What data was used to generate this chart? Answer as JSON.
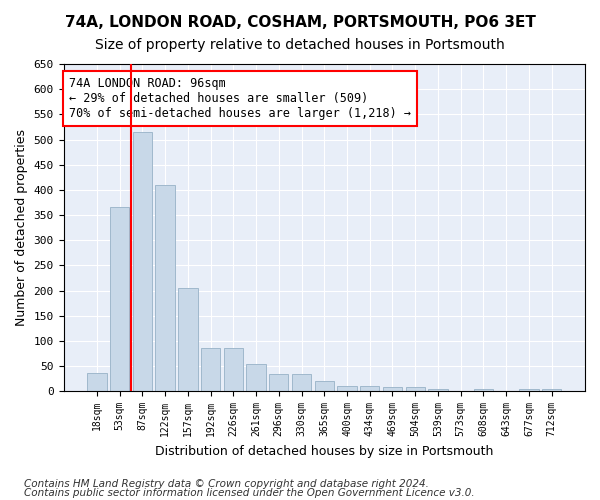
{
  "title1": "74A, LONDON ROAD, COSHAM, PORTSMOUTH, PO6 3ET",
  "title2": "Size of property relative to detached houses in Portsmouth",
  "xlabel": "Distribution of detached houses by size in Portsmouth",
  "ylabel": "Number of detached properties",
  "footer1": "Contains HM Land Registry data © Crown copyright and database right 2024.",
  "footer2": "Contains public sector information licensed under the Open Government Licence v3.0.",
  "categories": [
    "18sqm",
    "53sqm",
    "87sqm",
    "122sqm",
    "157sqm",
    "192sqm",
    "226sqm",
    "261sqm",
    "296sqm",
    "330sqm",
    "365sqm",
    "400sqm",
    "434sqm",
    "469sqm",
    "504sqm",
    "539sqm",
    "573sqm",
    "608sqm",
    "643sqm",
    "677sqm",
    "712sqm"
  ],
  "bar_values": [
    37,
    365,
    515,
    410,
    205,
    85,
    85,
    55,
    35,
    35,
    20,
    10,
    10,
    8,
    8,
    5,
    0,
    5,
    0,
    5,
    5
  ],
  "bar_color": "#c8d8e8",
  "bar_edgecolor": "#a0b8cc",
  "vline_x": 1.5,
  "vline_color": "red",
  "annotation_text": "74A LONDON ROAD: 96sqm\n← 29% of detached houses are smaller (509)\n70% of semi-detached houses are larger (1,218) →",
  "annotation_box_color": "white",
  "annotation_box_edgecolor": "red",
  "ylim": [
    0,
    650
  ],
  "yticks": [
    0,
    50,
    100,
    150,
    200,
    250,
    300,
    350,
    400,
    450,
    500,
    550,
    600,
    650
  ],
  "background_color": "#e8eef8",
  "grid_color": "white",
  "title1_fontsize": 11,
  "title2_fontsize": 10,
  "xlabel_fontsize": 9,
  "ylabel_fontsize": 9,
  "annotation_fontsize": 8.5,
  "footer_fontsize": 7.5,
  "tick_fontsize": 7
}
